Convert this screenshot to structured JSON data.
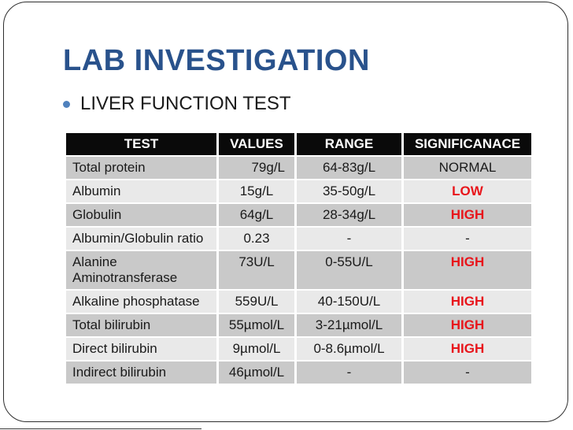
{
  "slide": {
    "title": "LAB INVESTIGATION",
    "bullet_text": "LIVER FUNCTION TEST"
  },
  "table": {
    "columns": [
      "TEST",
      "VALUES",
      "RANGE",
      "SIGNIFICANACE"
    ],
    "rows": [
      {
        "test": "Total protein",
        "value": "79g/L",
        "range": "64-83g/L",
        "significance": "NORMAL",
        "emphasis": "black"
      },
      {
        "test": "Albumin",
        "value": "15g/L",
        "range": "35-50g/L",
        "significance": "LOW",
        "emphasis": "red"
      },
      {
        "test": "Globulin",
        "value": "64g/L",
        "range": "28-34g/L",
        "significance": "HIGH",
        "emphasis": "red"
      },
      {
        "test": "Albumin/Globulin ratio",
        "value": "0.23",
        "range": "-",
        "significance": "-",
        "emphasis": "black"
      },
      {
        "test": "Alanine Aminotransferase",
        "value": "73U/L",
        "range": "0-55U/L",
        "significance": "HIGH",
        "emphasis": "red"
      },
      {
        "test": "Alkaline phosphatase",
        "value": "559U/L",
        "range": "40-150U/L",
        "significance": "HIGH",
        "emphasis": "red"
      },
      {
        "test": "Total bilirubin",
        "value": "55µmol/L",
        "range": "3-21µmol/L",
        "significance": "HIGH",
        "emphasis": "red"
      },
      {
        "test": "Direct bilirubin",
        "value": "9µmol/L",
        "range": "0-8.6µmol/L",
        "significance": "HIGH",
        "emphasis": "red"
      },
      {
        "test": "Indirect bilirubin",
        "value": "46µmol/L",
        "range": "-",
        "significance": "-",
        "emphasis": "black"
      }
    ]
  },
  "colors": {
    "title_blue": "#29528C",
    "bullet_blue": "#4F81BD",
    "header_bg": "#0A0A0A",
    "header_text": "#FFFFFF",
    "row_dark": "#C9C9C9",
    "row_light": "#E9E9E9",
    "abnormal_red": "#E8151B",
    "body_text": "#1A1A1A"
  }
}
